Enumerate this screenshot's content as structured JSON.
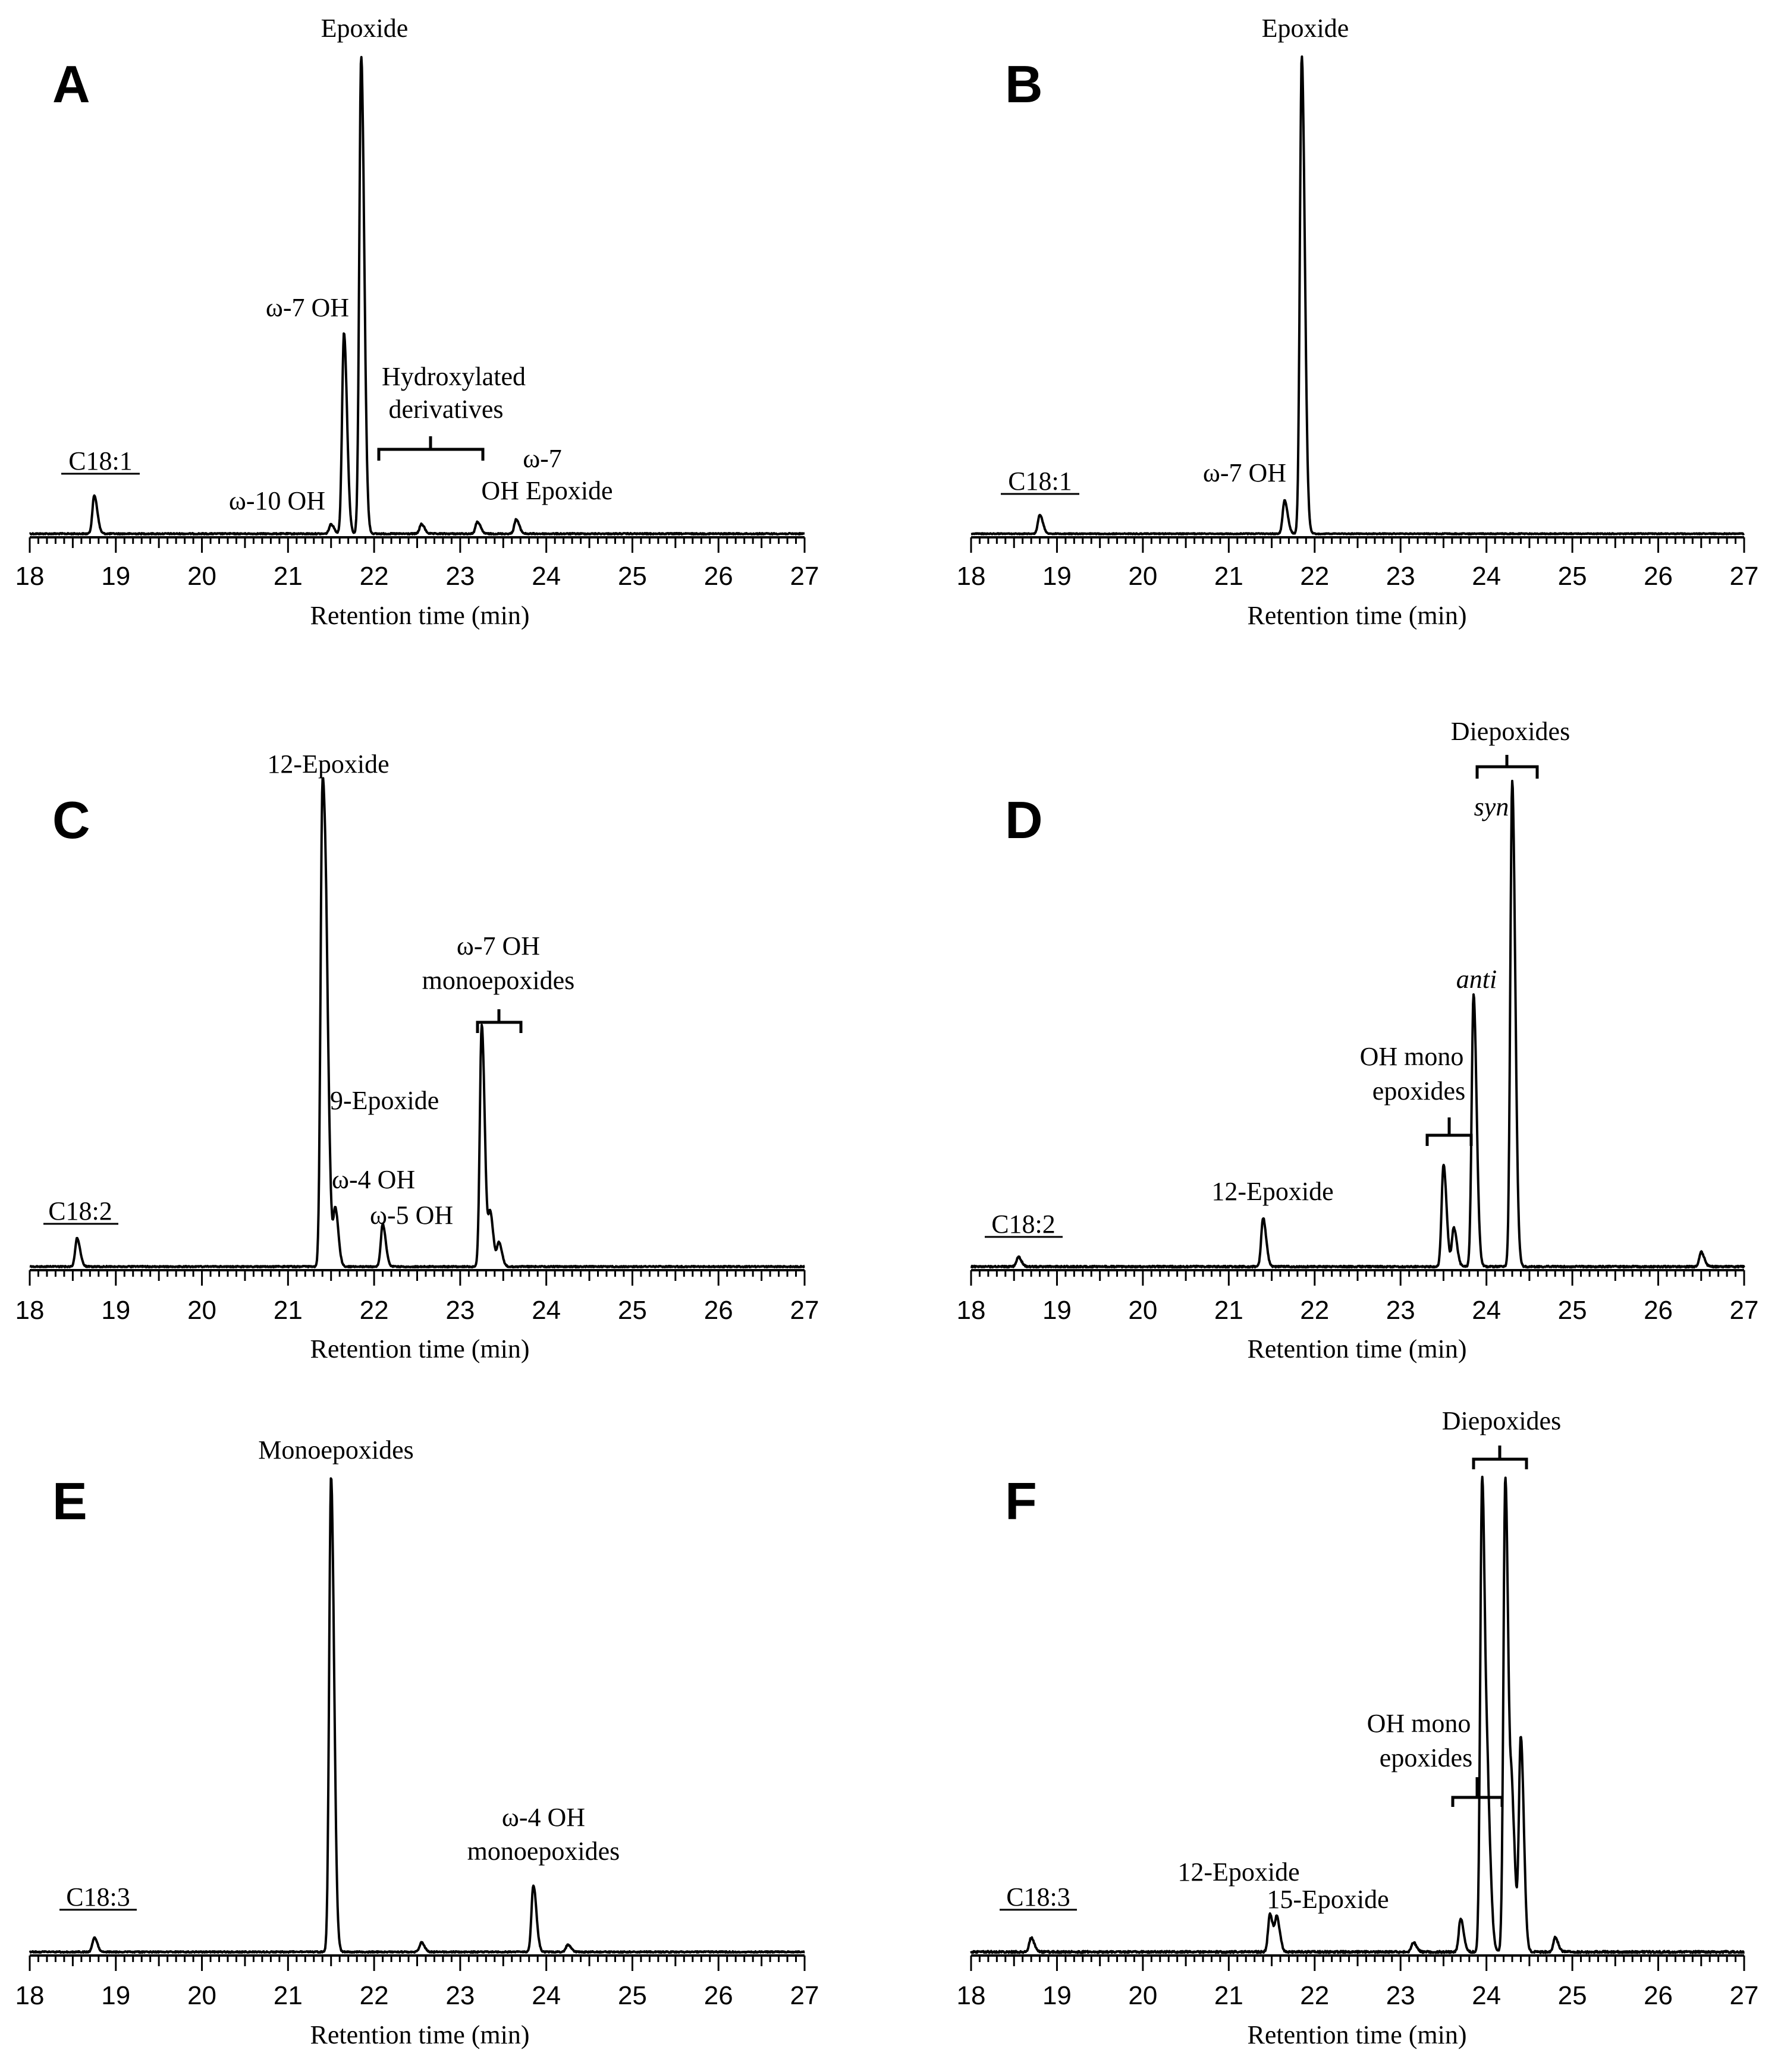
{
  "chart_data": [
    {
      "type": "line",
      "panel": "A",
      "substrate": "C18:1",
      "xlabel": "Retention time (min)",
      "ylabel": "",
      "xlim": [
        18,
        27
      ],
      "x_ticks": [
        18,
        19,
        20,
        21,
        22,
        23,
        24,
        25,
        26,
        27
      ],
      "peaks": [
        {
          "label": "C18:1",
          "x": 18.75,
          "height": 0.08
        },
        {
          "label": "ω-10 OH",
          "x": 21.5,
          "height": 0.02
        },
        {
          "label": "ω-7 OH",
          "x": 21.65,
          "height": 0.42
        },
        {
          "label": "Epoxide",
          "x": 21.85,
          "height": 1.0
        },
        {
          "label": "Hydroxylated derivatives",
          "x": 22.55,
          "height": 0.02
        },
        {
          "label": "Hydroxylated derivatives",
          "x": 23.2,
          "height": 0.025
        },
        {
          "label": "ω-7 OH Epoxide",
          "x": 23.65,
          "height": 0.03
        }
      ],
      "annotations": [
        {
          "text": "Epoxide"
        },
        {
          "text": "ω-7 OH"
        },
        {
          "text": "Hydroxylated"
        },
        {
          "text": "derivatives"
        },
        {
          "text": "ω-10 OH"
        },
        {
          "text": "ω-7"
        },
        {
          "text": "OH Epoxide"
        }
      ]
    },
    {
      "type": "line",
      "panel": "B",
      "substrate": "C18:1",
      "xlabel": "Retention time (min)",
      "ylabel": "",
      "xlim": [
        18,
        27
      ],
      "x_ticks": [
        18,
        19,
        20,
        21,
        22,
        23,
        24,
        25,
        26,
        27
      ],
      "peaks": [
        {
          "label": "C18:1",
          "x": 18.8,
          "height": 0.04
        },
        {
          "label": "ω-7 OH",
          "x": 21.65,
          "height": 0.07
        },
        {
          "label": "Epoxide",
          "x": 21.85,
          "height": 1.0
        }
      ],
      "annotations": [
        {
          "text": "Epoxide"
        },
        {
          "text": "ω-7 OH"
        }
      ]
    },
    {
      "type": "line",
      "panel": "C",
      "substrate": "C18:2",
      "xlabel": "Retention time (min)",
      "ylabel": "",
      "xlim": [
        18,
        27
      ],
      "x_ticks": [
        18,
        19,
        20,
        21,
        22,
        23,
        24,
        25,
        26,
        27
      ],
      "peaks": [
        {
          "label": "C18:2",
          "x": 18.55,
          "height": 0.06
        },
        {
          "label": "12-Epoxide",
          "x": 21.4,
          "height": 1.0
        },
        {
          "label": "9-Epoxide",
          "x": 21.45,
          "height": 0.35
        },
        {
          "label": "ω-4 OH",
          "x": 21.55,
          "height": 0.12
        },
        {
          "label": "ω-5 OH",
          "x": 22.1,
          "height": 0.09
        },
        {
          "label": "ω-7 OH monoepoxides",
          "x": 23.25,
          "height": 0.51
        },
        {
          "label": "ω-7 OH monoepoxides",
          "x": 23.35,
          "height": 0.11
        },
        {
          "label": "ω-7 OH monoepoxides",
          "x": 23.45,
          "height": 0.05
        }
      ],
      "annotations": [
        {
          "text": "12-Epoxide"
        },
        {
          "text": "ω-7 OH"
        },
        {
          "text": "monoepoxides"
        },
        {
          "text": "9-Epoxide"
        },
        {
          "text": "ω-4 OH"
        },
        {
          "text": "ω-5 OH"
        }
      ]
    },
    {
      "type": "line",
      "panel": "D",
      "substrate": "C18:2",
      "xlabel": "Retention time (min)",
      "ylabel": "",
      "xlim": [
        18,
        27
      ],
      "x_ticks": [
        18,
        19,
        20,
        21,
        22,
        23,
        24,
        25,
        26,
        27
      ],
      "peaks": [
        {
          "label": "C18:2",
          "x": 18.55,
          "height": 0.02
        },
        {
          "label": "12-Epoxide",
          "x": 21.4,
          "height": 0.1
        },
        {
          "label": "OH mono epoxides",
          "x": 23.5,
          "height": 0.21
        },
        {
          "label": "OH mono epoxides",
          "x": 23.62,
          "height": 0.08
        },
        {
          "label": "anti",
          "x": 23.85,
          "height": 0.56
        },
        {
          "label": "syn",
          "x": 24.3,
          "height": 1.0
        },
        {
          "label": "",
          "x": 26.5,
          "height": 0.03
        }
      ],
      "annotations": [
        {
          "text": "Diepoxides"
        },
        {
          "text": "syn"
        },
        {
          "text": "anti"
        },
        {
          "text": "OH mono"
        },
        {
          "text": "epoxides"
        },
        {
          "text": "12-Epoxide"
        }
      ]
    },
    {
      "type": "line",
      "panel": "E",
      "substrate": "C18:3",
      "xlabel": "Retention time (min)",
      "ylabel": "",
      "xlim": [
        18,
        27
      ],
      "x_ticks": [
        18,
        19,
        20,
        21,
        22,
        23,
        24,
        25,
        26,
        27
      ],
      "peaks": [
        {
          "label": "C18:3",
          "x": 18.75,
          "height": 0.03
        },
        {
          "label": "Monoepoxides",
          "x": 21.5,
          "height": 1.0
        },
        {
          "label": "",
          "x": 22.55,
          "height": 0.02
        },
        {
          "label": "ω-4 OH monoepoxides",
          "x": 23.85,
          "height": 0.14
        },
        {
          "label": "",
          "x": 24.25,
          "height": 0.015
        }
      ],
      "annotations": [
        {
          "text": "Monoepoxides"
        },
        {
          "text": "ω-4 OH"
        },
        {
          "text": "monoepoxides"
        }
      ]
    },
    {
      "type": "line",
      "panel": "F",
      "substrate": "C18:3",
      "xlabel": "Retention time (min)",
      "ylabel": "",
      "xlim": [
        18,
        27
      ],
      "x_ticks": [
        18,
        19,
        20,
        21,
        22,
        23,
        24,
        25,
        26,
        27
      ],
      "peaks": [
        {
          "label": "C18:3",
          "x": 18.7,
          "height": 0.03
        },
        {
          "label": "12-Epoxide",
          "x": 21.48,
          "height": 0.08
        },
        {
          "label": "15-Epoxide",
          "x": 21.56,
          "height": 0.07
        },
        {
          "label": "",
          "x": 23.15,
          "height": 0.02
        },
        {
          "label": "OH mono epoxides",
          "x": 23.7,
          "height": 0.07
        },
        {
          "label": "Diepoxides",
          "x": 23.95,
          "height": 1.0
        },
        {
          "label": "OH mono epoxides",
          "x": 24.02,
          "height": 0.24
        },
        {
          "label": "Diepoxides",
          "x": 24.22,
          "height": 1.0
        },
        {
          "label": "",
          "x": 24.3,
          "height": 0.28
        },
        {
          "label": "",
          "x": 24.4,
          "height": 0.45
        },
        {
          "label": "",
          "x": 24.8,
          "height": 0.03
        }
      ],
      "annotations": [
        {
          "text": "Diepoxides"
        },
        {
          "text": "OH mono"
        },
        {
          "text": "epoxides"
        },
        {
          "text": "12-Epoxide"
        },
        {
          "text": "15-Epoxide"
        }
      ]
    }
  ]
}
